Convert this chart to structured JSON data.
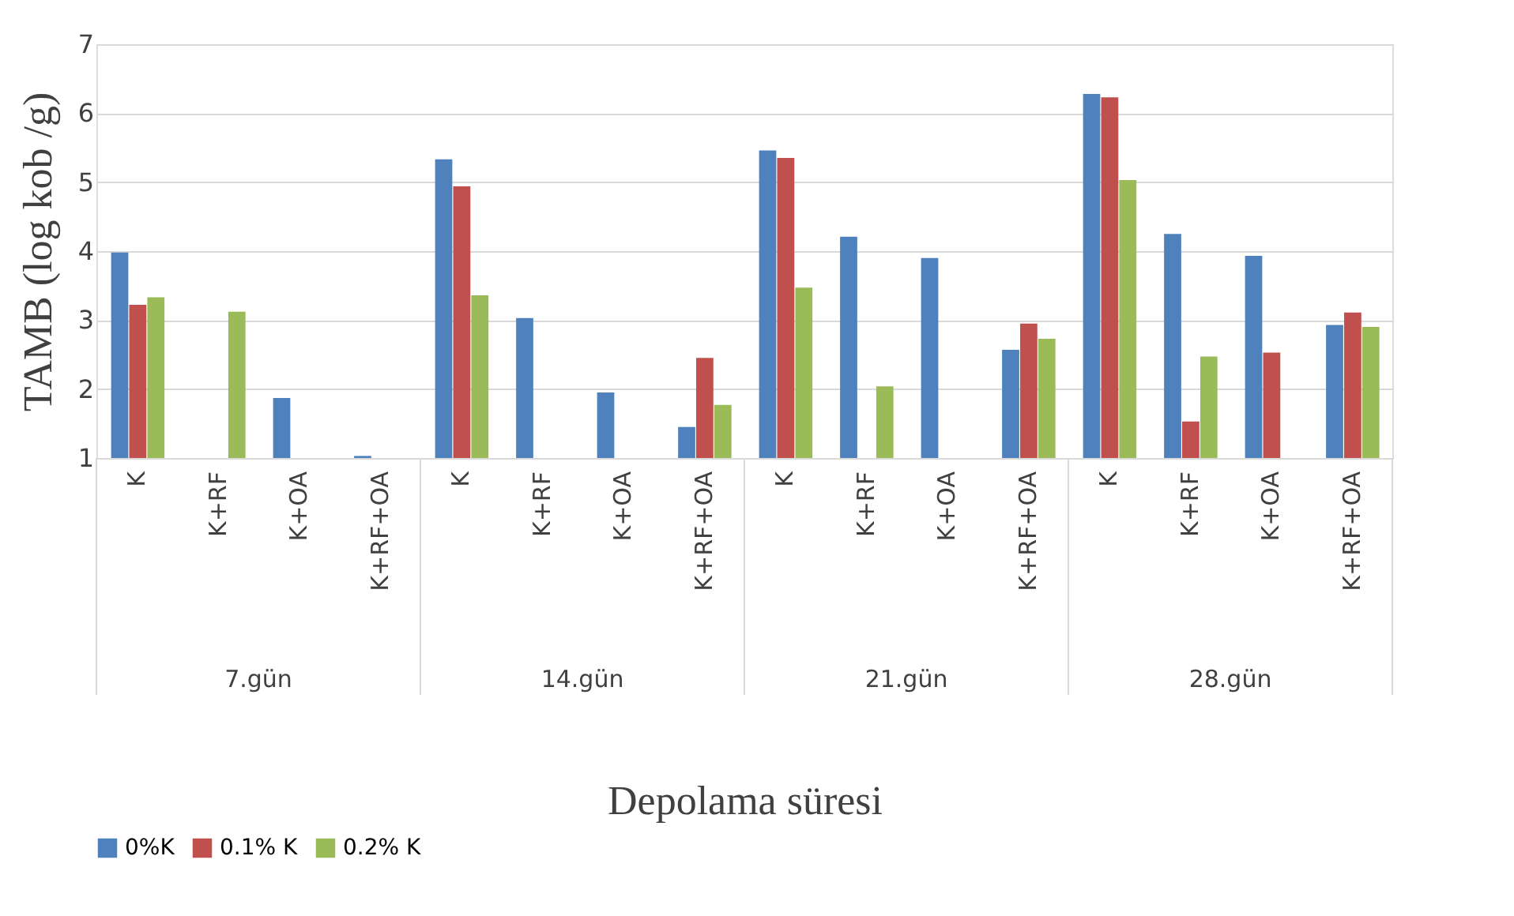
{
  "chart_data": {
    "type": "bar",
    "xlabel": "Depolama süresi",
    "ylabel": "TAMB (log kob /g)",
    "categories": [
      "K",
      "K+RF",
      "K+OA",
      "K+RF+OA",
      "K",
      "K+RF",
      "K+OA",
      "K+RF+OA",
      "K",
      "K+RF",
      "K+OA",
      "K+RF+OA",
      "K",
      "K+RF",
      "K+OA",
      "K+RF+OA"
    ],
    "annotations": [
      "7.gün",
      "14.gün",
      "21.gün",
      "28.gün"
    ],
    "series": [
      {
        "name": "0%K",
        "color": "#4f81bd",
        "values": [
          3.98,
          null,
          1.87,
          1.03,
          5.33,
          3.03,
          1.95,
          1.45,
          5.46,
          4.21,
          3.9,
          2.57,
          6.28,
          4.25,
          3.93,
          2.93
        ]
      },
      {
        "name": "0.1% K",
        "color": "#c0504d",
        "values": [
          3.22,
          null,
          null,
          null,
          4.94,
          null,
          null,
          2.45,
          5.35,
          1.0,
          null,
          2.95,
          6.23,
          1.53,
          2.53,
          3.11
        ]
      },
      {
        "name": "0.2% K",
        "color": "#9bbb59",
        "values": [
          3.33,
          3.12,
          null,
          null,
          3.36,
          null,
          null,
          1.77,
          3.47,
          2.04,
          null,
          2.73,
          5.03,
          2.47,
          null,
          2.9
        ]
      }
    ],
    "ylim": [
      1,
      7
    ],
    "yticks": [
      1,
      2,
      3,
      4,
      5,
      6,
      7
    ],
    "grid": "y",
    "legend": "bottom"
  }
}
